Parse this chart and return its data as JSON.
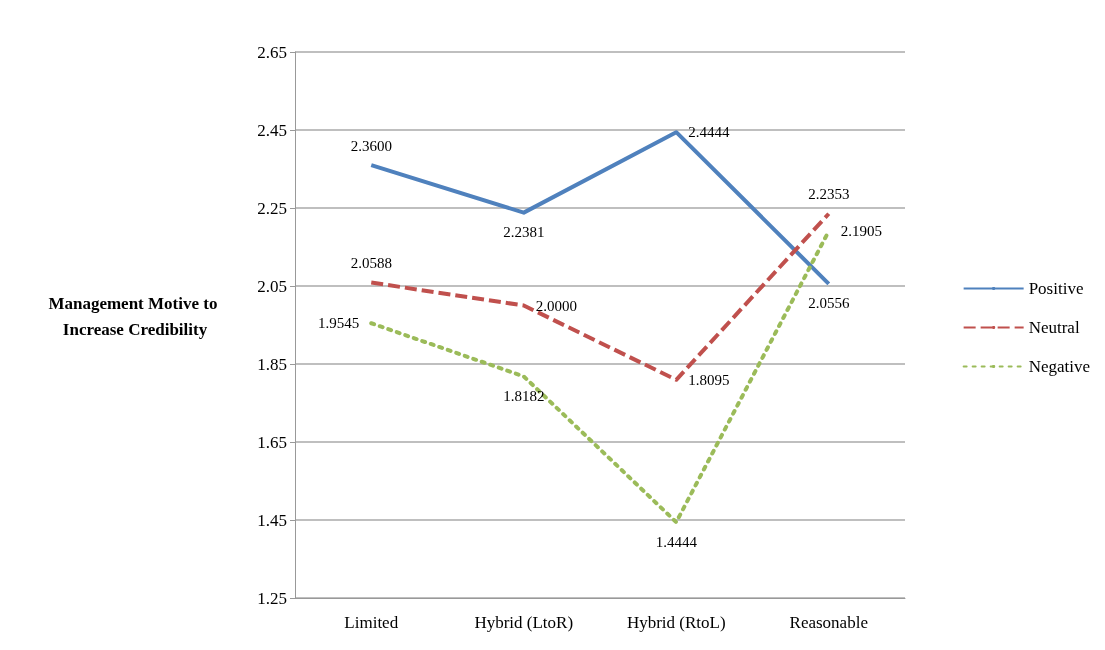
{
  "chart_data": {
    "type": "line",
    "ylabel": "Management Motive to Increase Credibility",
    "categories": [
      "Limited",
      "Hybrid (LtoR)",
      "Hybrid (RtoL)",
      "Reasonable"
    ],
    "series": [
      {
        "name": "Positive",
        "color": "#4f81bd",
        "line_style": "solid",
        "values": [
          2.36,
          2.2381,
          2.4444,
          2.0556
        ],
        "value_labels": [
          "2.3600",
          "2.2381",
          "2.4444",
          "2.0556"
        ]
      },
      {
        "name": "Neutral",
        "color": "#c0504d",
        "line_style": "dashed",
        "values": [
          2.0588,
          2.0,
          1.8095,
          2.2353
        ],
        "value_labels": [
          "2.0588",
          "2.0000",
          "1.8095",
          "2.2353"
        ]
      },
      {
        "name": "Negative",
        "color": "#9bbb59",
        "line_style": "dotted",
        "values": [
          1.9545,
          1.8182,
          1.4444,
          2.1905
        ],
        "value_labels": [
          "1.9545",
          "1.8182",
          "1.4444",
          "2.1905"
        ]
      }
    ],
    "ylim": [
      1.25,
      2.65
    ],
    "yticks": [
      1.25,
      1.45,
      1.65,
      1.85,
      2.05,
      2.25,
      2.45,
      2.65
    ],
    "grid": "y",
    "legend": "right",
    "marker": "none"
  }
}
